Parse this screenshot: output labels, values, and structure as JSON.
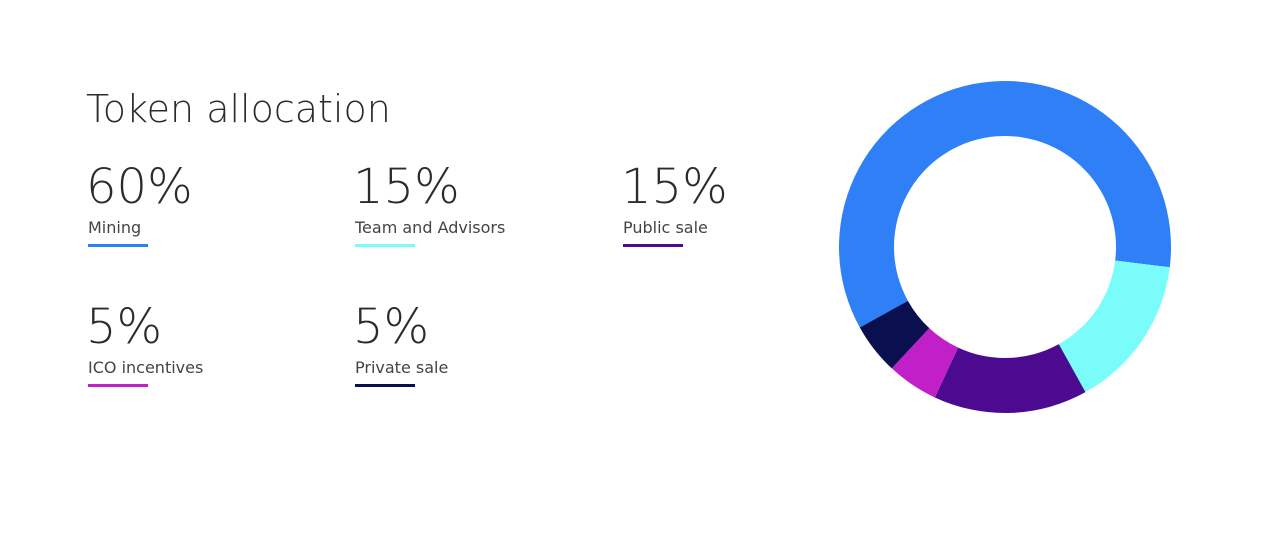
{
  "chart_data": {
    "type": "pie",
    "title": "Token allocation",
    "categories": [
      "Mining",
      "Team and Advisors",
      "Public sale",
      "ICO incentives",
      "Private sale"
    ],
    "values": [
      60,
      15,
      15,
      5,
      5
    ],
    "value_labels": [
      "60%",
      "15%",
      "15%",
      "5%",
      "5%"
    ],
    "colors": [
      "#2f80f6",
      "#7afcfa",
      "#4b0a90",
      "#c120c8",
      "#0a0f4f"
    ]
  }
}
